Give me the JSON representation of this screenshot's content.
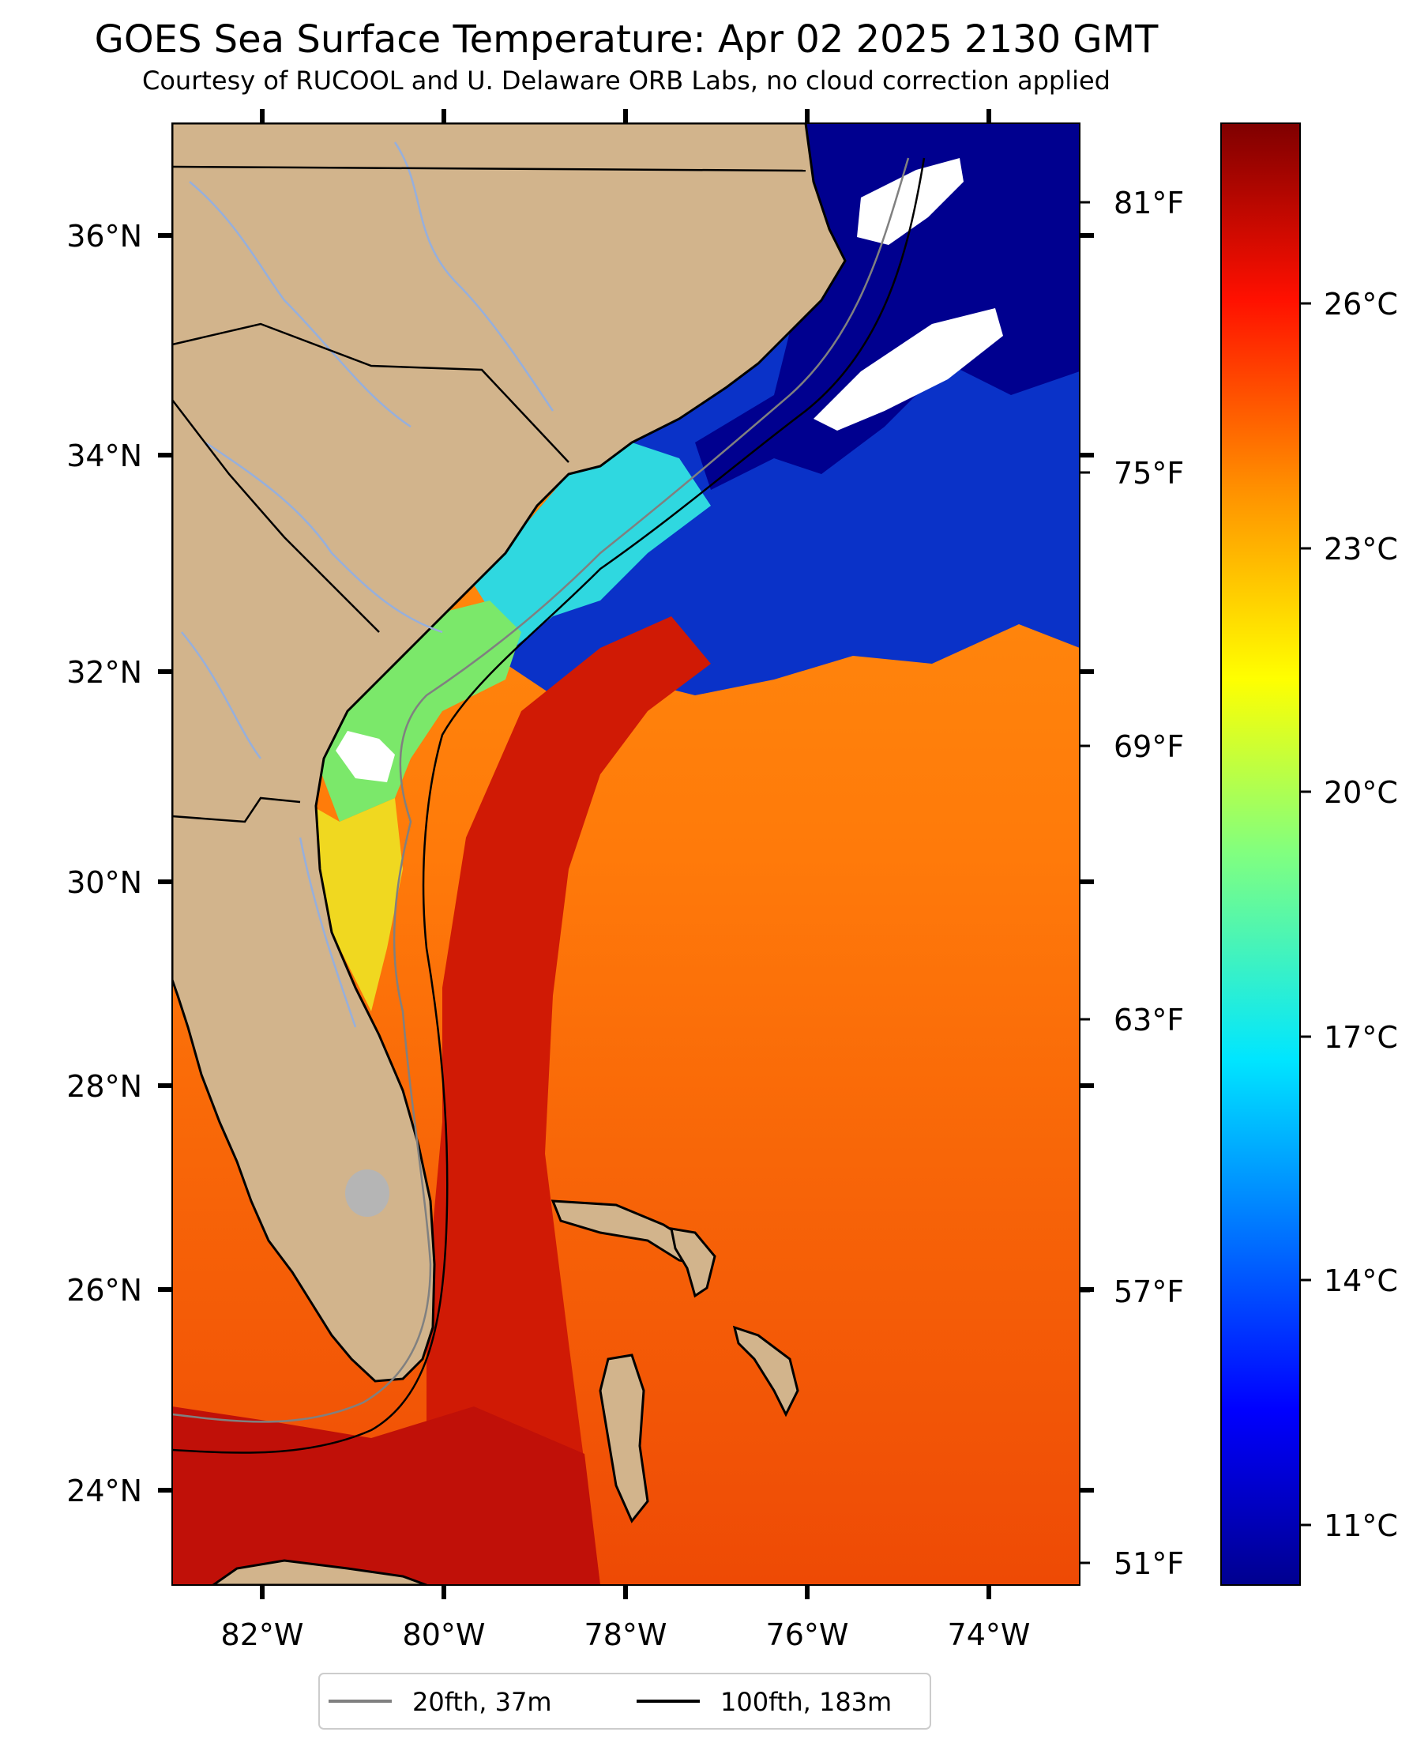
{
  "title": "GOES Sea Surface Temperature: Apr 02 2025 2130 GMT",
  "subtitle": "Courtesy of RUCOOL and U. Delaware ORB Labs, no cloud correction applied",
  "map": {
    "lon_ticks": [
      "82°W",
      "80°W",
      "78°W",
      "76°W",
      "74°W"
    ],
    "lat_ticks": [
      "36°N",
      "34°N",
      "32°N",
      "30°N",
      "28°N",
      "26°N",
      "24°N"
    ]
  },
  "fahrenheit_ticks": [
    "81°F",
    "75°F",
    "69°F",
    "63°F",
    "57°F",
    "51°F"
  ],
  "colorbar": {
    "ticks": [
      "26°C",
      "23°C",
      "20°C",
      "17°C",
      "14°C",
      "11°C"
    ],
    "colors": {
      "dark_red": "#7f0000",
      "red": "#e60f00",
      "orange": "#ff8a00",
      "yellow": "#f5f50a",
      "green": "#7df57c",
      "cyan": "#12f0e6",
      "blue": "#0a3cff",
      "dark_blue": "#00008f"
    }
  },
  "legend": {
    "items": [
      {
        "label": "20fth, 37m",
        "color": "#808080"
      },
      {
        "label": "100fth, 183m",
        "color": "#000000"
      }
    ]
  },
  "colors": {
    "land": "#d2b48c",
    "rivers": "#96afdc",
    "no_data": "#ffffff"
  }
}
